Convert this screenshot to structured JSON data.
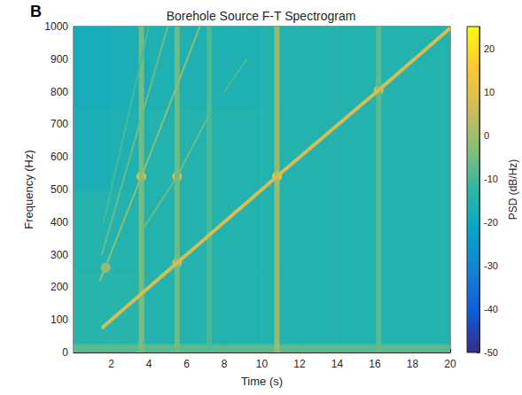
{
  "chart_data": {
    "type": "spectrogram",
    "title": "Borehole Source F-T Spectrogram",
    "panel_label": "B",
    "x_label": "Time (s)",
    "y_label": "Frequency (Hz)",
    "xlim": [
      0,
      20
    ],
    "xticks": [
      2,
      4,
      6,
      8,
      10,
      12,
      14,
      16,
      18,
      20
    ],
    "ylim": [
      0,
      1000
    ],
    "yticks": [
      0,
      100,
      200,
      300,
      400,
      500,
      600,
      700,
      800,
      900,
      1000
    ],
    "colorbar_label": "PSD (dB/Hz)",
    "clim": [
      -50,
      25
    ],
    "cticks": [
      -50,
      -40,
      -30,
      -20,
      -10,
      0,
      10,
      20
    ],
    "cells": {
      "t_edges": [
        0,
        2,
        4,
        6,
        8,
        10,
        12,
        14,
        16,
        18,
        20
      ],
      "f_edges": [
        0,
        25,
        250,
        500,
        750,
        1000
      ],
      "psd": [
        [
          -8,
          -8,
          -8,
          -8,
          -8,
          -8,
          -8,
          -8,
          -8,
          -8
        ],
        [
          -14,
          -14,
          -15,
          -15,
          -15,
          -15,
          -15,
          -15,
          -15,
          -15
        ],
        [
          -15,
          -15,
          -15,
          -15,
          -15,
          -15,
          -15,
          -15,
          -15,
          -15
        ],
        [
          -17,
          -16,
          -15,
          -15,
          -15,
          -15,
          -15,
          -15,
          -15,
          -15
        ],
        [
          -18,
          -17,
          -16,
          -16,
          -16,
          -15,
          -15,
          -15,
          -15,
          -15
        ]
      ]
    },
    "pulses": [
      {
        "t": 3.6,
        "psd": -4
      },
      {
        "t": 5.5,
        "psd": -5
      },
      {
        "t": 7.2,
        "psd": -9
      },
      {
        "t": 10.8,
        "psd": 0
      },
      {
        "t": 16.2,
        "psd": -7
      }
    ],
    "sweeps": [
      {
        "t": [
          1.5,
          5.5,
          10.8,
          16.2,
          20
        ],
        "f": [
          75,
          275,
          540,
          805,
          995
        ],
        "psd": 8
      },
      {
        "t": [
          3.7,
          5.5,
          7.2
        ],
        "f": [
          380,
          540,
          730
        ],
        "psd": -6
      },
      {
        "t": [
          8.0,
          9.2
        ],
        "f": [
          800,
          900
        ],
        "psd": -9
      },
      {
        "t": [
          1.4,
          3.6,
          5.5,
          6.7
        ],
        "f": [
          220,
          540,
          820,
          1000
        ],
        "psd": -2
      },
      {
        "t": [
          1.5,
          3.6,
          5.0
        ],
        "f": [
          300,
          720,
          1000
        ],
        "psd": -6
      },
      {
        "t": [
          1.6,
          3.6,
          4.0
        ],
        "f": [
          400,
          900,
          1000
        ],
        "psd": -10
      }
    ],
    "peaks": {
      "t": [
        3.6,
        5.5,
        10.8,
        16.2,
        5.5,
        1.7
      ],
      "f": [
        540,
        540,
        540,
        805,
        275,
        260
      ],
      "psd": [
        12,
        10,
        16,
        10,
        8,
        0
      ]
    }
  }
}
